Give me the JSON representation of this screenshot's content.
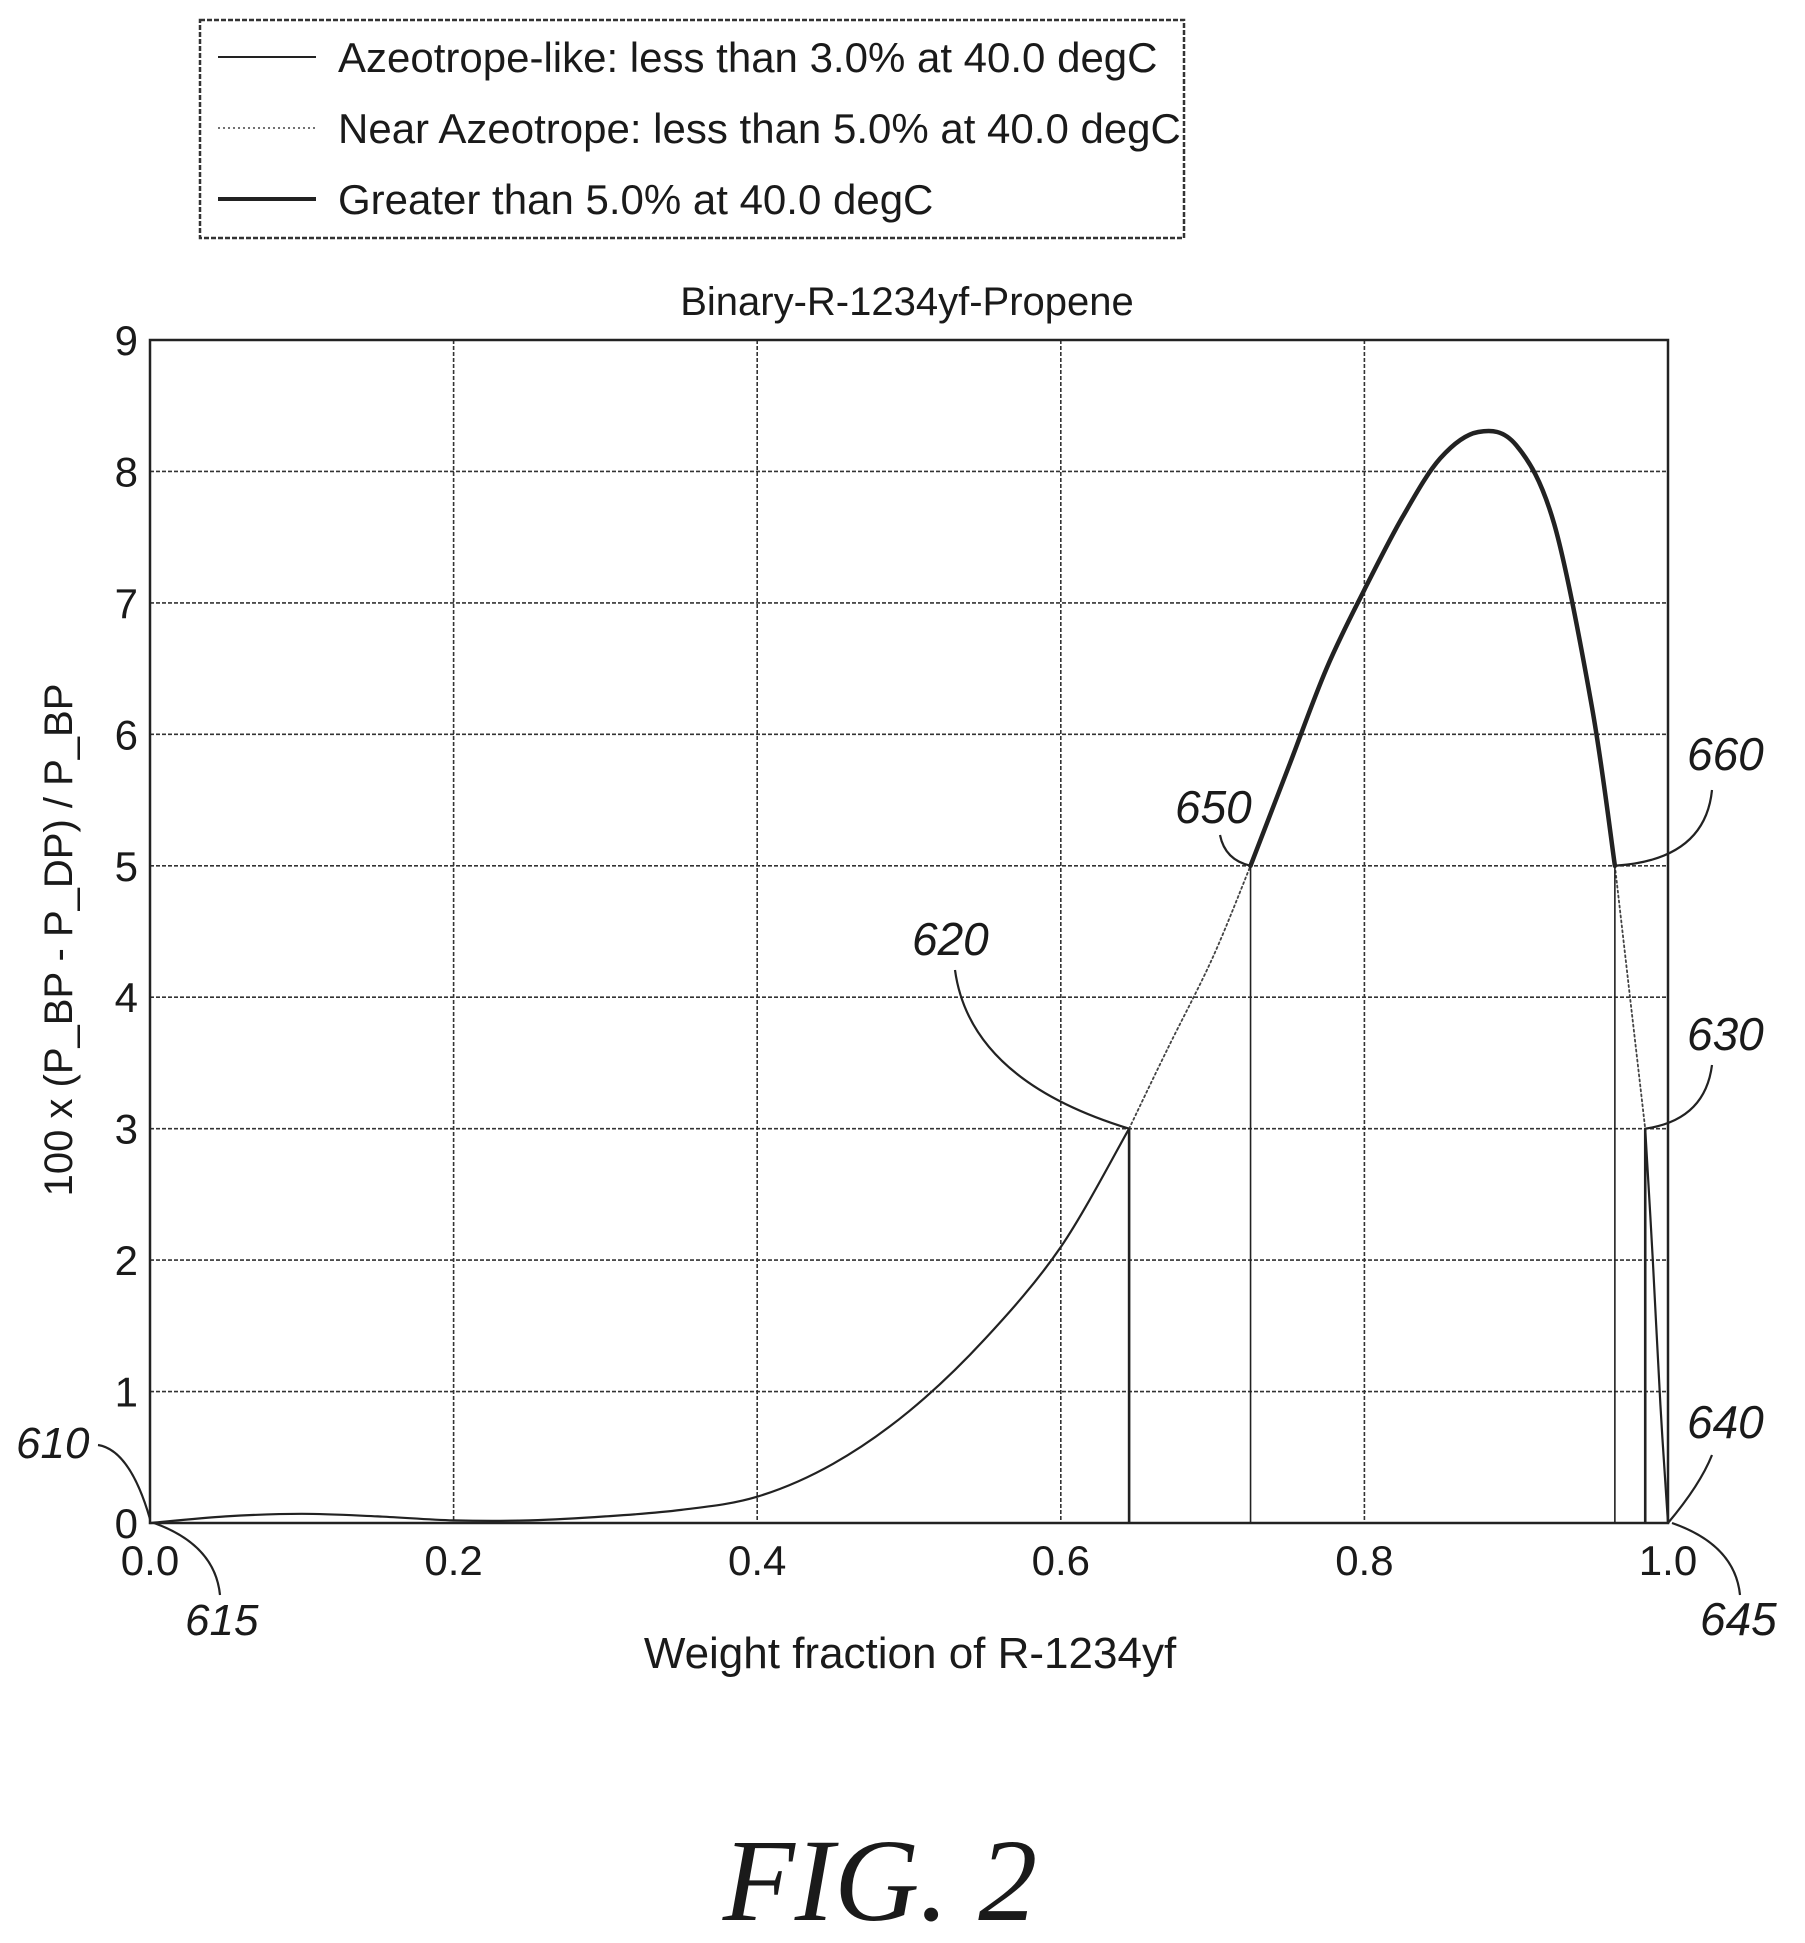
{
  "legend": {
    "entries": [
      {
        "label": "Azeotrope-like: less than 3.0% at 40.0 degC",
        "style": "solid-thin"
      },
      {
        "label": "Near Azeotrope: less than 5.0% at 40.0 degC",
        "style": "dotted"
      },
      {
        "label": "Greater than 5.0% at 40.0 degC",
        "style": "solid-thick"
      }
    ]
  },
  "figure_caption": "FIG. 2",
  "reference_numerals": {
    "r610": "610",
    "r615": "615",
    "r620": "620",
    "r630": "630",
    "r640": "640",
    "r645": "645",
    "r650": "650",
    "r660": "660"
  },
  "chart_data": {
    "type": "line",
    "title": "Binary-R-1234yf-Propene",
    "xlabel": "Weight fraction of R-1234yf",
    "ylabel": "100 x (P_BP - P_DP) / P_BP",
    "xlim": [
      0.0,
      1.0
    ],
    "ylim": [
      0,
      9
    ],
    "xticks": [
      0.0,
      0.2,
      0.4,
      0.6,
      0.8,
      1.0
    ],
    "xtick_labels": [
      "0.0",
      "0.2",
      "0.4",
      "0.6",
      "0.8",
      "1.0"
    ],
    "yticks": [
      0,
      1,
      2,
      3,
      4,
      5,
      6,
      7,
      8,
      9
    ],
    "ytick_labels": [
      "0",
      "1",
      "2",
      "3",
      "4",
      "5",
      "6",
      "7",
      "8",
      "9"
    ],
    "grid": true,
    "legend_position": "above-plot-left",
    "series": [
      {
        "name": "Azeotrope-like: less than 3.0% at 40.0 degC",
        "style": "solid-thin",
        "segments": [
          {
            "x": [
              0.0,
              0.05,
              0.1,
              0.15,
              0.2,
              0.25,
              0.3,
              0.35,
              0.4,
              0.45,
              0.5,
              0.55,
              0.6,
              0.645
            ],
            "y": [
              0.0,
              0.05,
              0.07,
              0.05,
              0.02,
              0.02,
              0.05,
              0.1,
              0.2,
              0.45,
              0.85,
              1.4,
              2.1,
              3.0
            ]
          },
          {
            "x": [
              0.985,
              0.99,
              0.995,
              1.0
            ],
            "y": [
              3.0,
              2.0,
              0.9,
              0.0
            ]
          }
        ]
      },
      {
        "name": "Near Azeotrope: less than 5.0% at 40.0 degC",
        "style": "dotted",
        "segments": [
          {
            "x": [
              0.645,
              0.67,
              0.7,
              0.725
            ],
            "y": [
              3.0,
              3.6,
              4.3,
              5.0
            ]
          },
          {
            "x": [
              0.965,
              0.975,
              0.985
            ],
            "y": [
              5.0,
              4.0,
              3.0
            ]
          }
        ]
      },
      {
        "name": "Greater than 5.0% at 40.0 degC",
        "style": "solid-thick",
        "segments": [
          {
            "x": [
              0.725,
              0.75,
              0.775,
              0.8,
              0.825,
              0.85,
              0.875,
              0.9,
              0.925,
              0.95,
              0.965
            ],
            "y": [
              5.0,
              5.75,
              6.5,
              7.1,
              7.65,
              8.1,
              8.3,
              8.2,
              7.6,
              6.2,
              5.0
            ]
          }
        ]
      }
    ],
    "markers": [
      {
        "x": 0.645,
        "y": 3.0,
        "ref": "620"
      },
      {
        "x": 0.725,
        "y": 5.0,
        "ref": "650"
      },
      {
        "x": 0.965,
        "y": 5.0,
        "ref": "660"
      },
      {
        "x": 0.985,
        "y": 3.0,
        "ref": "630"
      },
      {
        "x": 0.0,
        "y": 0.0,
        "ref": "610"
      },
      {
        "x": 1.0,
        "y": 0.0,
        "ref": "640"
      }
    ]
  }
}
